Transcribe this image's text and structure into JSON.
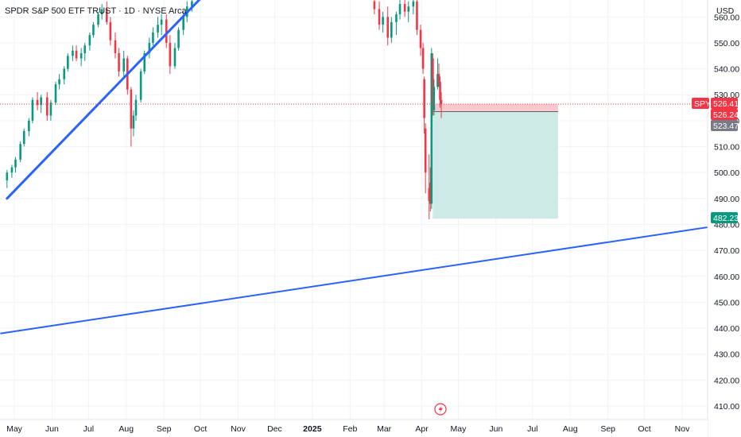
{
  "header": {
    "title": "SPDR S&P 500 ETF TRUST · 1D · NYSE Arca",
    "currency": "USD"
  },
  "colors": {
    "up": "#089981",
    "down": "#f23645",
    "trendline": "#2962ff",
    "stop_zone": "#f8c8cc",
    "target_zone": "#cdebe4",
    "entry_line": "#131722",
    "price_line": "#f23645",
    "ask_badge": "#787b86",
    "target_badge": "#089981"
  },
  "chart_data": {
    "type": "candlestick",
    "x_labels": [
      "May",
      "Jun",
      "Jul",
      "Aug",
      "Sep",
      "Oct",
      "Nov",
      "Dec",
      "2025",
      "Feb",
      "Mar",
      "Apr",
      "May",
      "Jun",
      "Jul",
      "Aug",
      "Sep",
      "Oct",
      "Nov"
    ],
    "y_ticks": [
      410,
      420,
      430,
      440,
      450,
      460,
      470,
      480,
      490,
      500,
      510,
      520,
      530,
      540,
      550,
      560
    ],
    "ylim": [
      406,
      566
    ],
    "price_badges": {
      "symbol": "SPY",
      "last_price": "526.41",
      "bid": "526.24",
      "ask": "523.47",
      "target": "482.23"
    },
    "position": {
      "entry": 523.47,
      "stop": 526.41,
      "target": 482.23,
      "start": "2025-04-10",
      "end": "2025-07-22"
    },
    "trendlines": [
      {
        "from": [
          "2024-04-25",
          490
        ],
        "to": [
          "2024-10-05",
          569
        ]
      },
      {
        "from": [
          "2024-04-20",
          438
        ],
        "to": [
          "2025-11-30",
          479.5
        ]
      }
    ],
    "candles_pre": [
      [
        "2024-04-25",
        497,
        501,
        494,
        500
      ],
      [
        "2024-04-29",
        500,
        503,
        498,
        502
      ],
      [
        "2024-05-02",
        502,
        506,
        500,
        505
      ],
      [
        "2024-05-06",
        505,
        512,
        504,
        511
      ],
      [
        "2024-05-09",
        511,
        517,
        510,
        516
      ],
      [
        "2024-05-13",
        516,
        521,
        514,
        520
      ],
      [
        "2024-05-16",
        520,
        529,
        519,
        528
      ],
      [
        "2024-05-20",
        528,
        531,
        524,
        526
      ],
      [
        "2024-05-23",
        526,
        530,
        523,
        529
      ],
      [
        "2024-05-28",
        529,
        531,
        520,
        522
      ],
      [
        "2024-05-31",
        522,
        528,
        520,
        527
      ],
      [
        "2024-06-04",
        527,
        535,
        526,
        534
      ],
      [
        "2024-06-07",
        534,
        538,
        532,
        536
      ],
      [
        "2024-06-11",
        536,
        541,
        534,
        540
      ],
      [
        "2024-06-14",
        540,
        546,
        539,
        545
      ],
      [
        "2024-06-18",
        545,
        549,
        543,
        547
      ],
      [
        "2024-06-21",
        547,
        549,
        543,
        544
      ],
      [
        "2024-06-25",
        544,
        548,
        541,
        546
      ],
      [
        "2024-06-28",
        546,
        550,
        543,
        549
      ],
      [
        "2024-07-02",
        549,
        554,
        547,
        553
      ],
      [
        "2024-07-05",
        553,
        558,
        552,
        557
      ],
      [
        "2024-07-09",
        557,
        562,
        556,
        561
      ],
      [
        "2024-07-12",
        561,
        565,
        559,
        563
      ],
      [
        "2024-07-16",
        563,
        566,
        557,
        558
      ],
      [
        "2024-07-19",
        558,
        560,
        549,
        551
      ],
      [
        "2024-07-23",
        551,
        554,
        544,
        546
      ],
      [
        "2024-07-26",
        546,
        548,
        537,
        539
      ],
      [
        "2024-07-30",
        539,
        547,
        536,
        544
      ],
      [
        "2024-08-02",
        544,
        545,
        530,
        532
      ],
      [
        "2024-08-05",
        532,
        533,
        510,
        517
      ],
      [
        "2024-08-07",
        517,
        524,
        514,
        522
      ],
      [
        "2024-08-09",
        522,
        530,
        520,
        528
      ],
      [
        "2024-08-13",
        528,
        540,
        527,
        539
      ],
      [
        "2024-08-16",
        539,
        547,
        538,
        546
      ],
      [
        "2024-08-20",
        546,
        552,
        544,
        550
      ],
      [
        "2024-08-23",
        550,
        556,
        549,
        554
      ],
      [
        "2024-08-27",
        554,
        560,
        552,
        557
      ],
      [
        "2024-08-30",
        557,
        561,
        553,
        559
      ],
      [
        "2024-09-03",
        559,
        561,
        548,
        550
      ],
      [
        "2024-09-06",
        550,
        553,
        538,
        541
      ],
      [
        "2024-09-10",
        541,
        550,
        540,
        548
      ],
      [
        "2024-09-13",
        548,
        556,
        547,
        555
      ],
      [
        "2024-09-17",
        555,
        562,
        553,
        560
      ],
      [
        "2024-09-20",
        560,
        566,
        558,
        564
      ],
      [
        "2024-09-24",
        564,
        568,
        562,
        566
      ]
    ],
    "candles_post": [
      [
        "2025-02-21",
        566,
        568,
        561,
        563
      ],
      [
        "2025-02-25",
        563,
        566,
        555,
        557
      ],
      [
        "2025-02-28",
        557,
        562,
        554,
        560
      ],
      [
        "2025-03-04",
        560,
        564,
        549,
        552
      ],
      [
        "2025-03-07",
        552,
        560,
        550,
        558
      ],
      [
        "2025-03-11",
        558,
        562,
        553,
        561
      ],
      [
        "2025-03-14",
        561,
        567,
        559,
        565
      ],
      [
        "2025-03-18",
        565,
        568,
        560,
        562
      ],
      [
        "2025-03-21",
        562,
        566,
        558,
        564
      ],
      [
        "2025-03-25",
        564,
        568,
        561,
        566
      ],
      [
        "2025-03-28",
        566,
        567,
        553,
        555
      ],
      [
        "2025-03-31",
        555,
        557,
        545,
        548
      ],
      [
        "2025-04-02",
        548,
        550,
        538,
        540
      ],
      [
        "2025-04-03",
        536,
        537,
        515,
        521
      ],
      [
        "2025-04-04",
        517,
        519,
        492,
        500
      ],
      [
        "2025-04-07",
        494,
        507,
        482,
        489
      ],
      [
        "2025-04-08",
        496,
        502,
        485,
        488
      ],
      [
        "2025-04-09",
        488,
        548,
        486,
        546
      ],
      [
        "2025-04-10",
        544,
        546,
        522,
        527
      ],
      [
        "2025-04-11",
        524,
        536,
        522,
        533
      ],
      [
        "2025-04-14",
        533,
        544,
        532,
        538
      ],
      [
        "2025-04-15",
        538,
        542,
        533,
        535
      ],
      [
        "2025-04-16",
        535,
        537,
        525,
        528
      ],
      [
        "2025-04-17",
        528,
        531,
        521,
        526.4
      ]
    ]
  }
}
